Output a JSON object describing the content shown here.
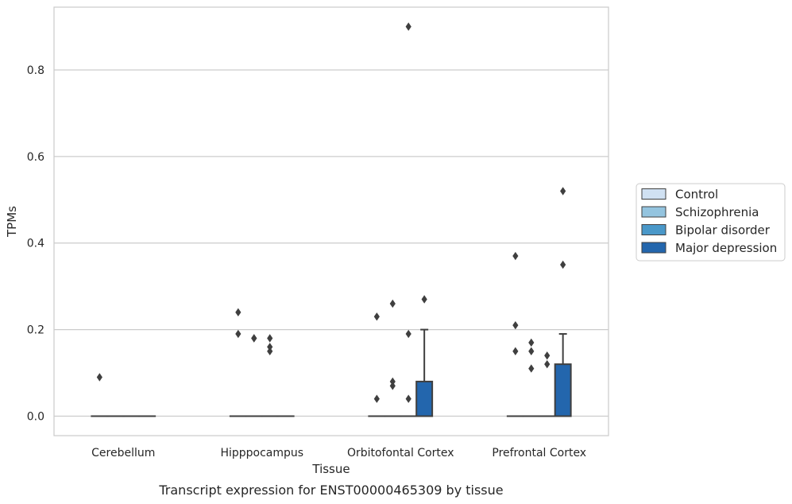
{
  "chart_data": {
    "type": "box",
    "title": "",
    "caption": "Transcript expression for ENST00000465309 by tissue",
    "xlabel": "Tissue",
    "ylabel": "TPMs",
    "ylim": [
      -0.045,
      0.945
    ],
    "yticks": [
      0.0,
      0.2,
      0.4,
      0.6,
      0.8
    ],
    "ytick_labels": [
      "0.0",
      "0.2",
      "0.4",
      "0.6",
      "0.8"
    ],
    "grid": "horizontal",
    "legend_position": "right",
    "categories": [
      "Cerebellum",
      "Hipppocampus",
      "Orbitofontal Cortex",
      "Prefrontal Cortex"
    ],
    "series": [
      {
        "name": "Control",
        "color": "#d0e1f2",
        "boxes": [
          {
            "q1": 0,
            "median": 0,
            "q3": 0,
            "whisker_low": 0,
            "whisker_high": 0,
            "outliers": [
              0.09
            ]
          },
          {
            "q1": 0,
            "median": 0,
            "q3": 0,
            "whisker_low": 0,
            "whisker_high": 0,
            "outliers": [
              0.24,
              0.19
            ]
          },
          {
            "q1": 0,
            "median": 0,
            "q3": 0,
            "whisker_low": 0,
            "whisker_high": 0,
            "outliers": [
              0.23,
              0.04
            ]
          },
          {
            "q1": 0,
            "median": 0,
            "q3": 0,
            "whisker_low": 0,
            "whisker_high": 0,
            "outliers": [
              0.37,
              0.21,
              0.15
            ]
          }
        ]
      },
      {
        "name": "Schizophrenia",
        "color": "#94c4df",
        "boxes": [
          {
            "q1": 0,
            "median": 0,
            "q3": 0,
            "whisker_low": 0,
            "whisker_high": 0,
            "outliers": []
          },
          {
            "q1": 0,
            "median": 0,
            "q3": 0,
            "whisker_low": 0,
            "whisker_high": 0,
            "outliers": [
              0.18,
              0.18
            ]
          },
          {
            "q1": 0,
            "median": 0,
            "q3": 0,
            "whisker_low": 0,
            "whisker_high": 0,
            "outliers": [
              0.26,
              0.08,
              0.07
            ]
          },
          {
            "q1": 0,
            "median": 0,
            "q3": 0,
            "whisker_low": 0,
            "whisker_high": 0,
            "outliers": [
              0.17,
              0.15,
              0.11
            ]
          }
        ]
      },
      {
        "name": "Bipolar disorder",
        "color": "#4a98c9",
        "boxes": [
          {
            "q1": 0,
            "median": 0,
            "q3": 0,
            "whisker_low": 0,
            "whisker_high": 0,
            "outliers": []
          },
          {
            "q1": 0,
            "median": 0,
            "q3": 0,
            "whisker_low": 0,
            "whisker_high": 0,
            "outliers": [
              0.18,
              0.16,
              0.15
            ]
          },
          {
            "q1": 0,
            "median": 0,
            "q3": 0,
            "whisker_low": 0,
            "whisker_high": 0,
            "outliers": [
              0.9,
              0.19,
              0.04
            ]
          },
          {
            "q1": 0,
            "median": 0,
            "q3": 0,
            "whisker_low": 0,
            "whisker_high": 0,
            "outliers": [
              0.14,
              0.12
            ]
          }
        ]
      },
      {
        "name": "Major depression",
        "color": "#2366ad",
        "boxes": [
          {
            "q1": 0,
            "median": 0,
            "q3": 0,
            "whisker_low": 0,
            "whisker_high": 0,
            "outliers": []
          },
          {
            "q1": 0,
            "median": 0,
            "q3": 0,
            "whisker_low": 0,
            "whisker_high": 0,
            "outliers": []
          },
          {
            "q1": 0,
            "median": 0,
            "q3": 0.08,
            "whisker_low": 0,
            "whisker_high": 0.2,
            "outliers": [
              0.27
            ]
          },
          {
            "q1": 0,
            "median": 0,
            "q3": 0.12,
            "whisker_low": 0,
            "whisker_high": 0.19,
            "outliers": [
              0.52,
              0.35
            ]
          }
        ]
      }
    ]
  }
}
